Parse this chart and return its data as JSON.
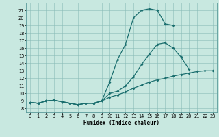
{
  "xlabel": "Humidex (Indice chaleur)",
  "xlim": [
    -0.5,
    23.5
  ],
  "ylim": [
    7.5,
    22
  ],
  "yticks": [
    8,
    9,
    10,
    11,
    12,
    13,
    14,
    15,
    16,
    17,
    18,
    19,
    20,
    21
  ],
  "xticks": [
    0,
    1,
    2,
    3,
    4,
    5,
    6,
    7,
    8,
    9,
    10,
    11,
    12,
    13,
    14,
    15,
    16,
    17,
    18,
    19,
    20,
    21,
    22,
    23
  ],
  "bg_color": "#c8e8e0",
  "line_color": "#1a6e6e",
  "curve_max_x": [
    0,
    1,
    2,
    3,
    4,
    5,
    6,
    7,
    8,
    9,
    10,
    11,
    12,
    13,
    14,
    15,
    16,
    17,
    18
  ],
  "curve_max_y": [
    8.8,
    8.7,
    9.0,
    9.1,
    8.9,
    8.7,
    8.5,
    8.7,
    8.7,
    9.0,
    11.5,
    14.5,
    16.5,
    20.0,
    21.0,
    21.2,
    21.0,
    19.2,
    19.0
  ],
  "curve_mid_x": [
    0,
    1,
    2,
    3,
    4,
    5,
    6,
    7,
    8,
    9,
    10,
    11,
    12,
    13,
    14,
    15,
    16,
    17,
    18,
    19,
    20
  ],
  "curve_mid_y": [
    8.8,
    8.7,
    9.0,
    9.1,
    8.9,
    8.7,
    8.5,
    8.7,
    8.7,
    9.0,
    10.0,
    10.3,
    11.0,
    12.2,
    13.8,
    15.2,
    16.5,
    16.7,
    16.0,
    14.8,
    13.2
  ],
  "curve_avg_x": [
    0,
    1,
    2,
    3,
    4,
    5,
    6,
    7,
    8,
    9,
    10,
    11,
    12,
    13,
    14,
    15,
    16,
    17,
    18,
    19,
    20,
    21,
    22,
    23
  ],
  "curve_avg_y": [
    8.8,
    8.7,
    9.0,
    9.1,
    8.9,
    8.7,
    8.5,
    8.7,
    8.7,
    9.0,
    9.5,
    9.8,
    10.2,
    10.7,
    11.1,
    11.5,
    11.8,
    12.0,
    12.3,
    12.5,
    12.7,
    12.9,
    13.0,
    13.0
  ]
}
